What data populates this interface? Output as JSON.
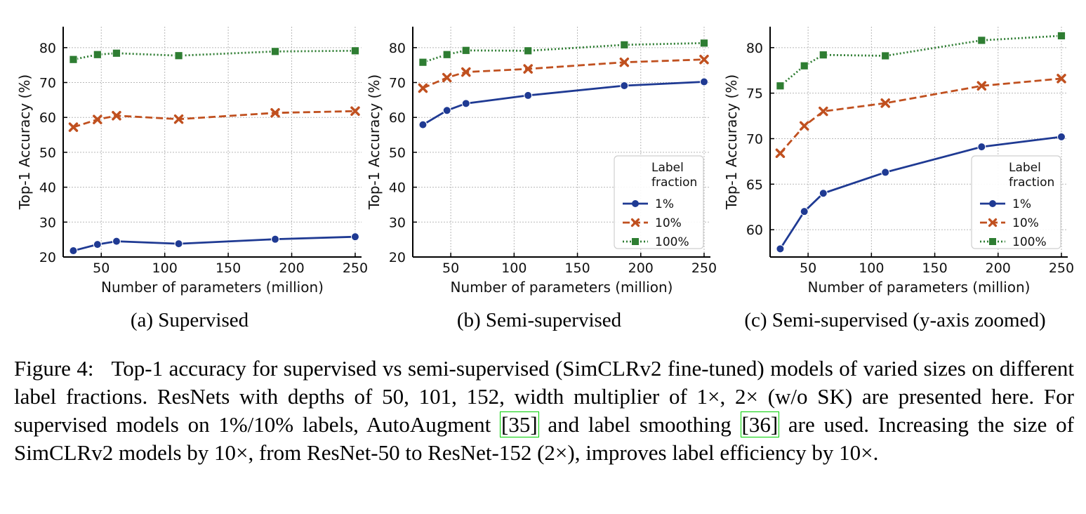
{
  "chart_data": [
    {
      "type": "line",
      "subcaption": "(a) Supervised",
      "xlabel": "Number of parameters (million)",
      "ylabel": "Top-1 Accuracy (%)",
      "xlim": [
        20,
        255
      ],
      "ylim": [
        20,
        86
      ],
      "xticks": [
        50,
        100,
        150,
        200,
        250
      ],
      "yticks": [
        20,
        30,
        40,
        50,
        60,
        70,
        80
      ],
      "grid": true,
      "legend": null,
      "series": [
        {
          "name": "1%",
          "color": "#1f3a93",
          "dash": "solid",
          "marker": "circle",
          "x": [
            28,
            47,
            62,
            111,
            187,
            250
          ],
          "values": [
            21.8,
            23.6,
            24.5,
            23.8,
            25.1,
            25.8
          ]
        },
        {
          "name": "10%",
          "color": "#c0501f",
          "dash": "dashed",
          "marker": "x",
          "x": [
            28,
            47,
            62,
            111,
            187,
            250
          ],
          "values": [
            57.2,
            59.4,
            60.5,
            59.5,
            61.3,
            61.8
          ]
        },
        {
          "name": "100%",
          "color": "#2e7d32",
          "dash": "dotted",
          "marker": "square",
          "x": [
            28,
            47,
            62,
            111,
            187,
            250
          ],
          "values": [
            76.6,
            78.0,
            78.4,
            77.7,
            78.9,
            79.1
          ]
        }
      ]
    },
    {
      "type": "line",
      "subcaption": "(b) Semi-supervised",
      "xlabel": "Number of parameters (million)",
      "ylabel": "Top-1 Accuracy (%)",
      "xlim": [
        20,
        255
      ],
      "ylim": [
        20,
        86
      ],
      "xticks": [
        50,
        100,
        150,
        200,
        250
      ],
      "yticks": [
        20,
        30,
        40,
        50,
        60,
        70,
        80
      ],
      "grid": true,
      "legend": {
        "title": [
          "Label",
          "fraction"
        ],
        "placement": "lower-right"
      },
      "series": [
        {
          "name": "1%",
          "color": "#1f3a93",
          "dash": "solid",
          "marker": "circle",
          "x": [
            28,
            47,
            62,
            111,
            187,
            250
          ],
          "values": [
            57.9,
            62.0,
            64.0,
            66.3,
            69.1,
            70.2
          ]
        },
        {
          "name": "10%",
          "color": "#c0501f",
          "dash": "dashed",
          "marker": "x",
          "x": [
            28,
            47,
            62,
            111,
            187,
            250
          ],
          "values": [
            68.4,
            71.4,
            73.0,
            73.9,
            75.8,
            76.6
          ]
        },
        {
          "name": "100%",
          "color": "#2e7d32",
          "dash": "dotted",
          "marker": "square",
          "x": [
            28,
            47,
            62,
            111,
            187,
            250
          ],
          "values": [
            75.8,
            78.0,
            79.2,
            79.1,
            80.8,
            81.3
          ]
        }
      ]
    },
    {
      "type": "line",
      "subcaption": "(c) Semi-supervised (y-axis zoomed)",
      "xlabel": "Number of parameters (million)",
      "ylabel": "Top-1 Accuracy (%)",
      "xlim": [
        20,
        255
      ],
      "ylim": [
        57,
        82.3
      ],
      "xticks": [
        50,
        100,
        150,
        200,
        250
      ],
      "yticks": [
        60,
        65,
        70,
        75,
        80
      ],
      "grid": true,
      "legend": {
        "title": [
          "Label",
          "fraction"
        ],
        "placement": "lower-right"
      },
      "series": [
        {
          "name": "1%",
          "color": "#1f3a93",
          "dash": "solid",
          "marker": "circle",
          "x": [
            28,
            47,
            62,
            111,
            187,
            250
          ],
          "values": [
            57.9,
            62.0,
            64.0,
            66.3,
            69.1,
            70.2
          ]
        },
        {
          "name": "10%",
          "color": "#c0501f",
          "dash": "dashed",
          "marker": "x",
          "x": [
            28,
            47,
            62,
            111,
            187,
            250
          ],
          "values": [
            68.4,
            71.4,
            73.0,
            73.9,
            75.8,
            76.6
          ]
        },
        {
          "name": "100%",
          "color": "#2e7d32",
          "dash": "dotted",
          "marker": "square",
          "x": [
            28,
            47,
            62,
            111,
            187,
            250
          ],
          "values": [
            75.8,
            78.0,
            79.2,
            79.1,
            80.8,
            81.3
          ]
        }
      ]
    }
  ],
  "caption": {
    "label": "Figure 4:",
    "part1": "Top-1 accuracy for supervised vs semi-supervised (SimCLRv2 fine-tuned) models of varied sizes on different label fractions. ResNets with depths of 50, 101, 152, width multiplier of 1×, 2× (w/o SK) are presented here. For supervised models on 1%/10% labels, AutoAugment",
    "cite1": "[35]",
    "part2": "and label smoothing",
    "cite2": "[36]",
    "part3": "are used. Increasing the size of SimCLRv2 models by 10×, from ResNet-50 to ResNet-152 (2×), improves label efficiency by 10×."
  }
}
